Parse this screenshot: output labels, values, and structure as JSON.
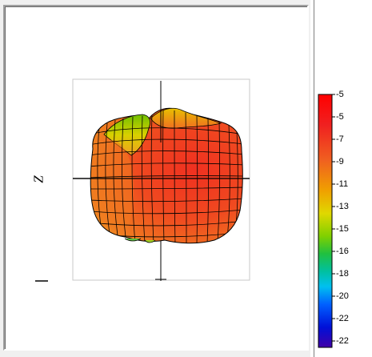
{
  "plot": {
    "axis_label": "Z",
    "colors": {
      "background": "#ffffff",
      "frame": "#c8c8c8",
      "axis": "#000000",
      "mesh": "#000000"
    }
  },
  "colorbar": {
    "labels": [
      "-5",
      "-5",
      "-7",
      "-9",
      "-11",
      "-13",
      "-15",
      "-16",
      "-18",
      "-20",
      "-22",
      "-22"
    ],
    "gradient": [
      "#ff0000",
      "#f84020",
      "#f07020",
      "#f0c000",
      "#c8d800",
      "#40d000",
      "#00c080",
      "#00c0e0",
      "#0060ff",
      "#0010e0",
      "#2000c0",
      "#4000a0"
    ]
  }
}
